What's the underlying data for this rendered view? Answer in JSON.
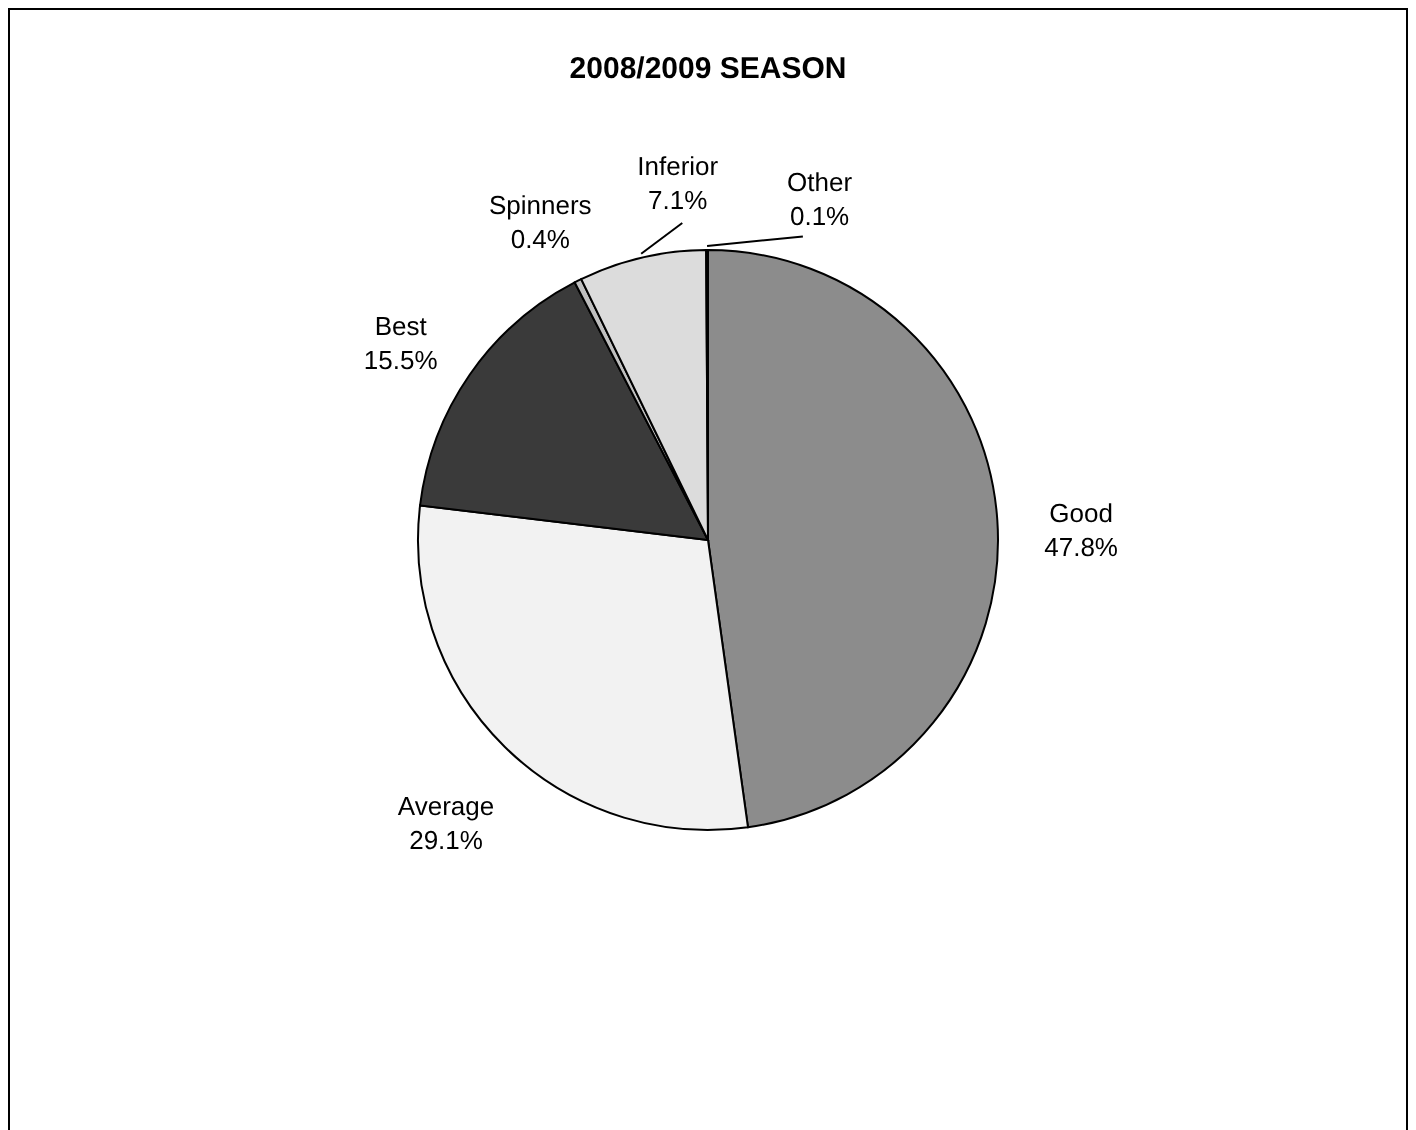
{
  "chart_data": {
    "type": "pie",
    "title": "2008/2009 SEASON",
    "categories": [
      "Good",
      "Average",
      "Best",
      "Spinners",
      "Inferior",
      "Other"
    ],
    "values": [
      47.8,
      29.1,
      15.5,
      0.4,
      7.1,
      0.1
    ],
    "value_labels": [
      "47.8%",
      "29.1%",
      "15.5%",
      "0.4%",
      "7.1%",
      "0.1%"
    ],
    "colors": [
      "#8c8c8c",
      "#f2f2f2",
      "#3a3a3a",
      "#bfbfbf",
      "#dcdcdc",
      "#ffffff"
    ],
    "legend": false
  }
}
